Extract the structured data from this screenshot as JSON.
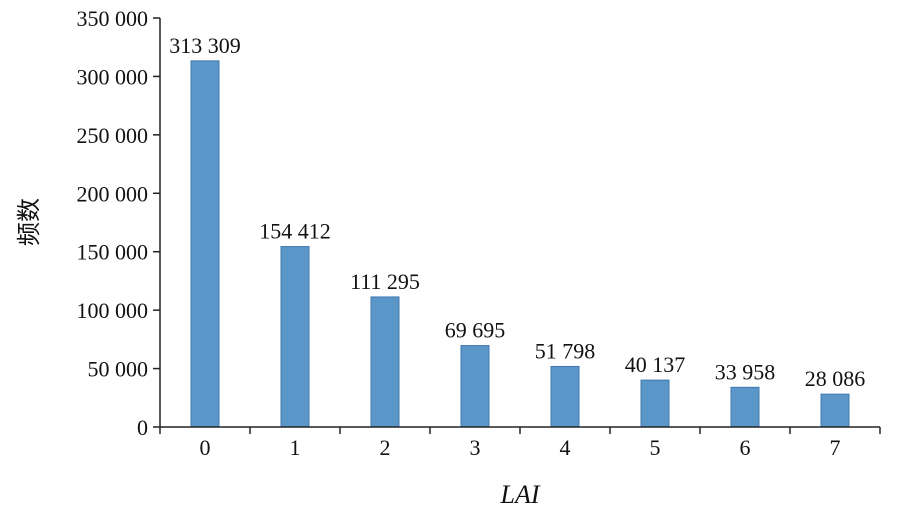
{
  "chart_data": {
    "type": "bar",
    "categories": [
      "0",
      "1",
      "2",
      "3",
      "4",
      "5",
      "6",
      "7"
    ],
    "values": [
      313309,
      154412,
      111295,
      69695,
      51798,
      40137,
      33958,
      28086
    ],
    "value_labels": [
      "313 309",
      "154 412",
      "111 295",
      "69 695",
      "51 798",
      "40 137",
      "33 958",
      "28 086"
    ],
    "title": "",
    "xlabel": "LAI",
    "ylabel": "频数",
    "ylim": [
      0,
      350000
    ],
    "yticks": [
      0,
      50000,
      100000,
      150000,
      200000,
      250000,
      300000,
      350000
    ],
    "ytick_labels": [
      "0",
      "50 000",
      "100 000",
      "150 000",
      "200 000",
      "250 000",
      "300 000",
      "350 000"
    ],
    "grid": false,
    "bar_color": "#5b96c9",
    "bar_edge_color": "#3f78b0"
  }
}
